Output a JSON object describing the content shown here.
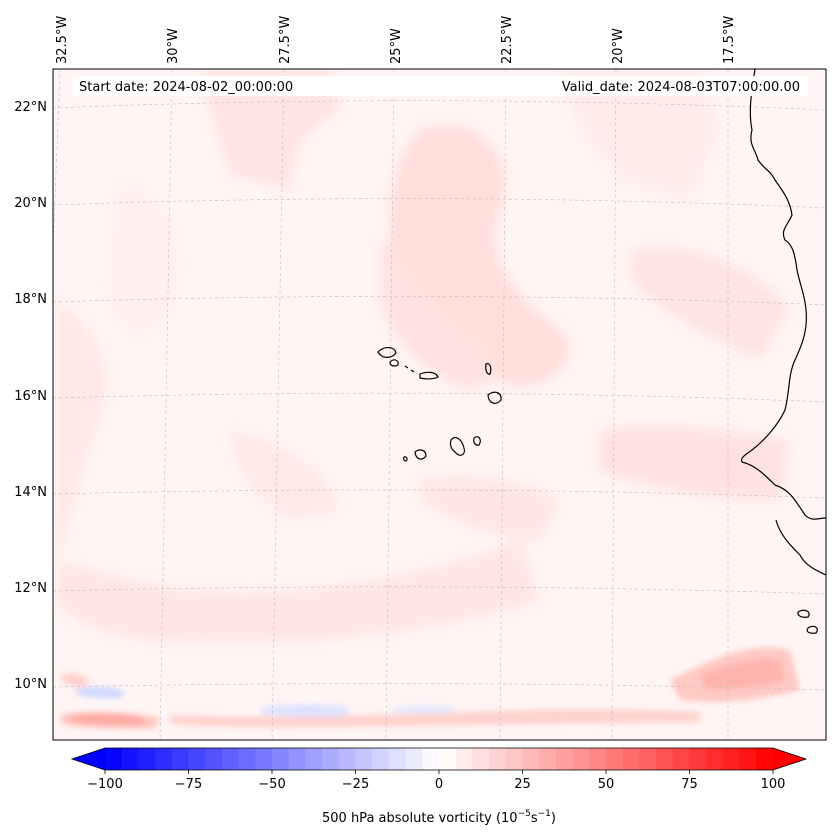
{
  "map": {
    "start_label": "Start date: 2024-08-02_00:00:00",
    "valid_label": "Valid_date: 2024-08-03T07:00:00.00",
    "lon_ticks": [
      "32.5°W",
      "30°W",
      "27.5°W",
      "25°W",
      "22.5°W",
      "20°W",
      "17.5°W"
    ],
    "lat_ticks": [
      "22°N",
      "20°N",
      "18°N",
      "16°N",
      "14°N",
      "12°N",
      "10°N"
    ]
  },
  "colorbar": {
    "label_prefix": "500 hPa absolute vorticity (10",
    "label_exp1": "−5",
    "label_mid": "s",
    "label_exp2": "−1",
    "label_suffix": ")",
    "ticks": [
      "−100",
      "−75",
      "−50",
      "−25",
      "0",
      "25",
      "50",
      "75",
      "100"
    ],
    "min": -100,
    "max": 100,
    "low_color": "#0000ff",
    "mid_color": "#ffffff",
    "high_color": "#ff0000"
  }
}
